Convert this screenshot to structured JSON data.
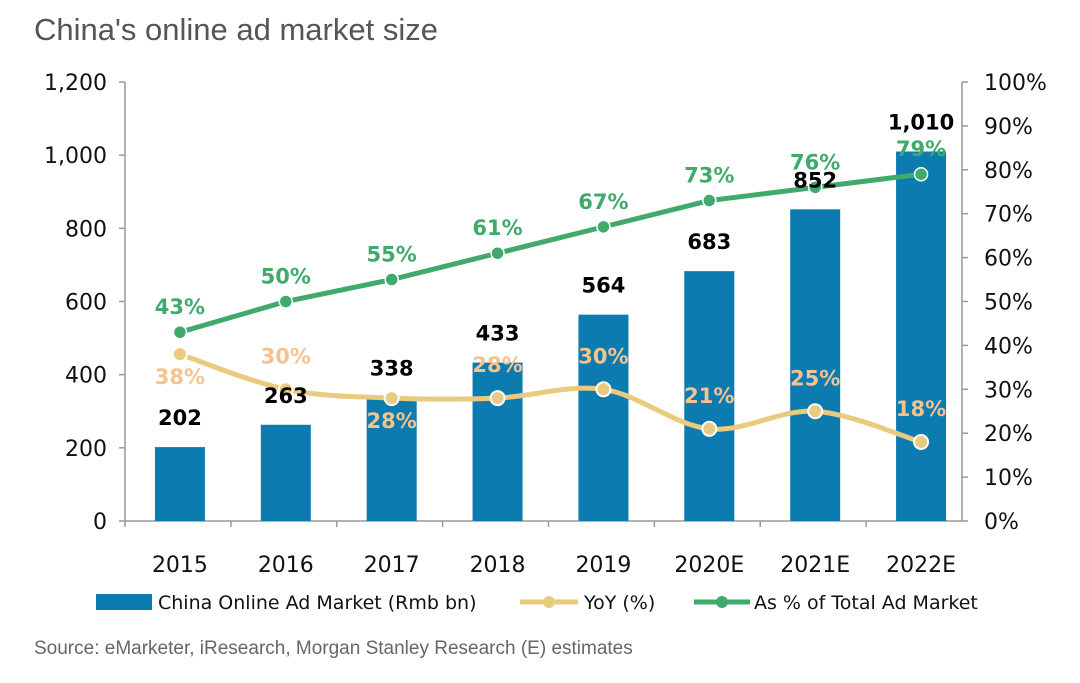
{
  "chart_data": {
    "type": "bar",
    "title": "China's online ad market size",
    "source": "Source: eMarketer, iResearch, Morgan Stanley Research (E) estimates",
    "categories": [
      "2015",
      "2016",
      "2017",
      "2018",
      "2019",
      "2020E",
      "2021E",
      "2022E"
    ],
    "y_left": {
      "range": [
        0,
        1200
      ],
      "ticks": [
        "0",
        "200",
        "400",
        "600",
        "800",
        "1,000",
        "1,200"
      ]
    },
    "y_right": {
      "range": [
        0,
        100
      ],
      "ticks": [
        "0%",
        "10%",
        "20%",
        "30%",
        "40%",
        "50%",
        "60%",
        "70%",
        "80%",
        "90%",
        "100%"
      ]
    },
    "legend_position": "bottom",
    "grid": false,
    "series": [
      {
        "name": "China Online Ad Market (Rmb bn)",
        "type": "bar",
        "axis": "left",
        "color": "#0B7BB0",
        "values": [
          202,
          263,
          338,
          433,
          564,
          683,
          852,
          1010
        ],
        "labels": [
          "202",
          "263",
          "338",
          "433",
          "564",
          "683",
          "852",
          "1,010"
        ]
      },
      {
        "name": "YoY (%)",
        "type": "line",
        "smooth": true,
        "axis": "right",
        "color": "#E9CB80",
        "label_color": "#F6C28E",
        "values": [
          38,
          30,
          28,
          28,
          30,
          21,
          25,
          18
        ],
        "labels": [
          "38%",
          "30%",
          "28%",
          "28%",
          "30%",
          "21%",
          "25%",
          "18%"
        ]
      },
      {
        "name": "As % of Total Ad Market",
        "type": "line",
        "axis": "right",
        "color": "#3FAA6B",
        "values": [
          43,
          50,
          55,
          61,
          67,
          73,
          76,
          79
        ],
        "labels": [
          "43%",
          "50%",
          "55%",
          "61%",
          "67%",
          "73%",
          "76%",
          "79%"
        ]
      }
    ]
  }
}
